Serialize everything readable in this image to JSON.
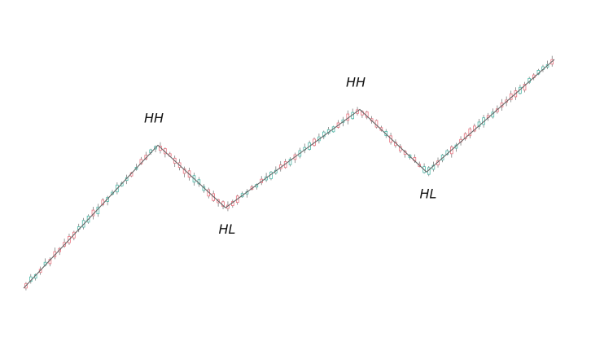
{
  "colors": {
    "background": "#ffffff",
    "trend_line": "#666666",
    "bull_candle": "#4fb8a8",
    "bear_candle": "#e8737f",
    "wick": "#555555",
    "label": "#111111"
  },
  "chart_data": {
    "type": "line",
    "title": "",
    "xlabel": "",
    "ylabel": "",
    "grid": false,
    "axes_visible": false,
    "pivot_index": [
      0,
      1,
      2,
      3,
      4,
      5
    ],
    "pivot_price": [
      20,
      100,
      65,
      120,
      85,
      148
    ],
    "candles_per_leg": [
      28,
      14,
      28,
      14,
      28
    ],
    "series": [
      {
        "type": "line",
        "x": [
          0,
          1,
          2,
          3,
          4,
          5
        ],
        "y": [
          20,
          100,
          65,
          120,
          85,
          148
        ]
      }
    ],
    "annotations": [
      {
        "text": "HH",
        "at_pivot": 1,
        "position": "above"
      },
      {
        "text": "HL",
        "at_pivot": 2,
        "position": "below"
      },
      {
        "text": "HH",
        "at_pivot": 3,
        "position": "above"
      },
      {
        "text": "HL",
        "at_pivot": 4,
        "position": "below"
      }
    ]
  }
}
